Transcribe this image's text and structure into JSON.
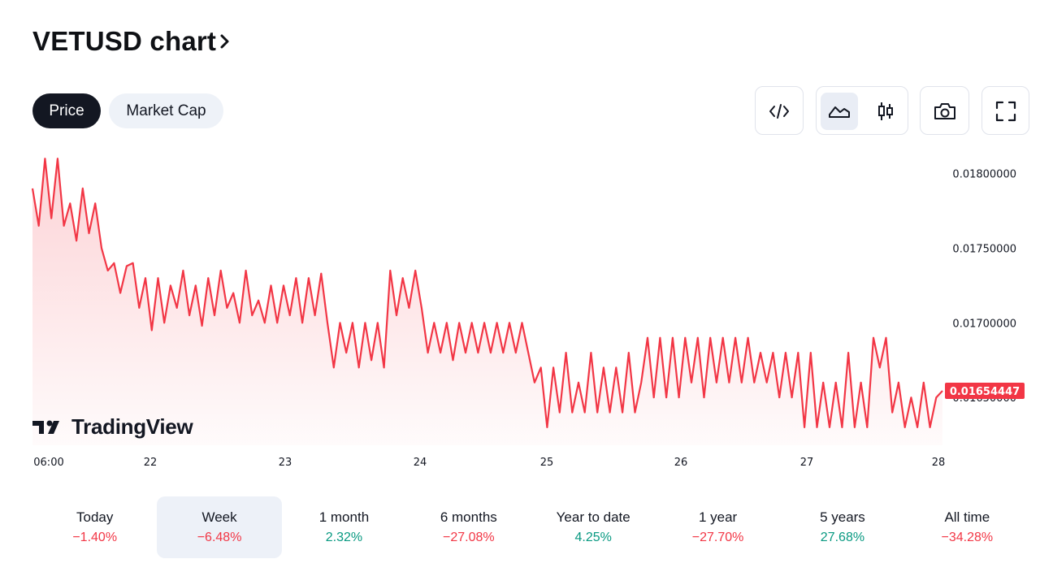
{
  "title": "VETUSD chart",
  "tabs": [
    {
      "label": "Price",
      "active": true
    },
    {
      "label": "Market Cap",
      "active": false
    }
  ],
  "toolbar": [
    {
      "icon": "embed-code-icon"
    },
    {
      "icon": "area-chart-icon",
      "active": true
    },
    {
      "icon": "candlestick-icon"
    },
    {
      "icon": "camera-icon"
    },
    {
      "icon": "fullscreen-icon"
    }
  ],
  "watermark": "TradingView",
  "colors": {
    "line": "#f23645",
    "positive": "#089981",
    "negative": "#f23645",
    "text": "#131722"
  },
  "chart_data": {
    "type": "area",
    "x_ticks": [
      "06:00",
      "22",
      "23",
      "24",
      "25",
      "26",
      "27",
      "28"
    ],
    "y_ticks": [
      "0.01800000",
      "0.01750000",
      "0.01700000",
      "0.01650000"
    ],
    "ylim": [
      0.01618,
      0.01815
    ],
    "last_value": "0.01654447",
    "grid": false,
    "series": [
      {
        "values": [
          0.0179,
          0.01765,
          0.0181,
          0.0177,
          0.0181,
          0.01765,
          0.0178,
          0.01755,
          0.0179,
          0.0176,
          0.0178,
          0.0175,
          0.01735,
          0.0174,
          0.0172,
          0.01738,
          0.0174,
          0.0171,
          0.0173,
          0.01695,
          0.0173,
          0.017,
          0.01725,
          0.0171,
          0.01735,
          0.01705,
          0.01725,
          0.01698,
          0.0173,
          0.01705,
          0.01735,
          0.0171,
          0.0172,
          0.017,
          0.01735,
          0.01705,
          0.01715,
          0.017,
          0.01725,
          0.017,
          0.01725,
          0.01705,
          0.0173,
          0.017,
          0.0173,
          0.01705,
          0.01733,
          0.017,
          0.0167,
          0.017,
          0.0168,
          0.017,
          0.0167,
          0.017,
          0.01675,
          0.017,
          0.0167,
          0.01735,
          0.01705,
          0.0173,
          0.0171,
          0.01735,
          0.0171,
          0.0168,
          0.017,
          0.0168,
          0.017,
          0.01675,
          0.017,
          0.0168,
          0.017,
          0.0168,
          0.017,
          0.0168,
          0.017,
          0.0168,
          0.017,
          0.0168,
          0.017,
          0.0168,
          0.0166,
          0.0167,
          0.0163,
          0.0167,
          0.0164,
          0.0168,
          0.0164,
          0.0166,
          0.0164,
          0.0168,
          0.0164,
          0.0167,
          0.0164,
          0.0167,
          0.0164,
          0.0168,
          0.0164,
          0.0166,
          0.0169,
          0.0165,
          0.0169,
          0.0165,
          0.0169,
          0.0165,
          0.0169,
          0.0166,
          0.0169,
          0.0165,
          0.0169,
          0.0166,
          0.0169,
          0.0166,
          0.0169,
          0.0166,
          0.0169,
          0.0166,
          0.0168,
          0.0166,
          0.0168,
          0.0165,
          0.0168,
          0.0165,
          0.0168,
          0.0163,
          0.0168,
          0.0163,
          0.0166,
          0.0163,
          0.0166,
          0.0163,
          0.0168,
          0.0163,
          0.0166,
          0.0163,
          0.0169,
          0.0167,
          0.0169,
          0.0164,
          0.0166,
          0.0163,
          0.0165,
          0.0163,
          0.0166,
          0.0163,
          0.0165,
          0.01654447
        ]
      }
    ]
  },
  "periods": [
    {
      "label": "Today",
      "value": "−1.40%",
      "sign": "neg",
      "active": false
    },
    {
      "label": "Week",
      "value": "−6.48%",
      "sign": "neg",
      "active": true
    },
    {
      "label": "1 month",
      "value": "2.32%",
      "sign": "pos",
      "active": false
    },
    {
      "label": "6 months",
      "value": "−27.08%",
      "sign": "neg",
      "active": false
    },
    {
      "label": "Year to date",
      "value": "4.25%",
      "sign": "pos",
      "active": false
    },
    {
      "label": "1 year",
      "value": "−27.70%",
      "sign": "neg",
      "active": false
    },
    {
      "label": "5 years",
      "value": "27.68%",
      "sign": "pos",
      "active": false
    },
    {
      "label": "All time",
      "value": "−34.28%",
      "sign": "neg",
      "active": false
    }
  ]
}
